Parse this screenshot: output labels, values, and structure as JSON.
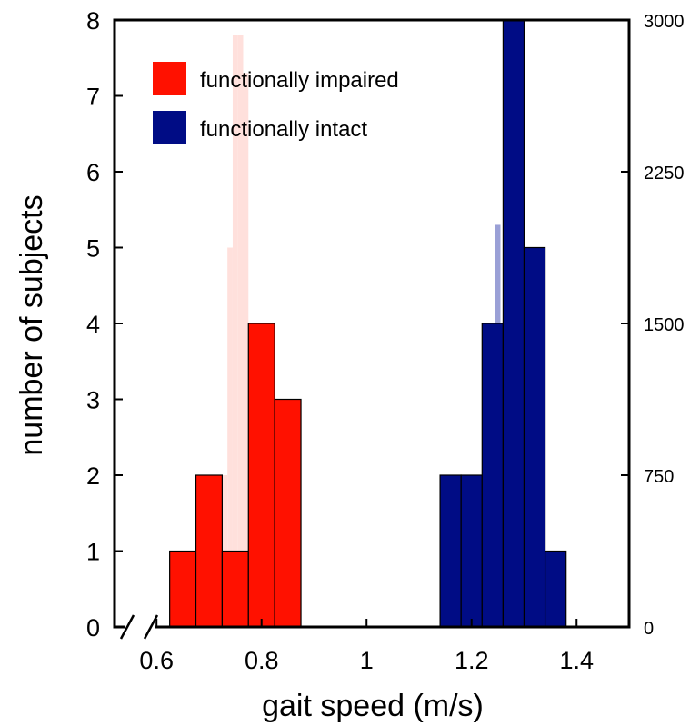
{
  "chart_data": {
    "type": "bar",
    "xlabel": "gait speed (m/s)",
    "ylabel": "number of subjects",
    "xlim": [
      0.52,
      1.5
    ],
    "ylim": [
      0,
      8
    ],
    "ylim_right": [
      0,
      3000
    ],
    "x_ticks": [
      0.6,
      0.8,
      1,
      1.2,
      1.4
    ],
    "y_ticks": [
      0,
      1,
      2,
      3,
      4,
      5,
      6,
      7,
      8
    ],
    "y_ticks_right": [
      0,
      750,
      1500,
      2250,
      3000
    ],
    "axis_break": "x",
    "bin_width": 0.05,
    "legend_position": "top-left",
    "series": [
      {
        "name": "functionally impaired",
        "color": "#ff1100",
        "bins": [
          {
            "x0": 0.625,
            "x1": 0.675,
            "count": 1
          },
          {
            "x0": 0.675,
            "x1": 0.725,
            "count": 2
          },
          {
            "x0": 0.725,
            "x1": 0.775,
            "count": 1
          },
          {
            "x0": 0.775,
            "x1": 0.825,
            "count": 4
          },
          {
            "x0": 0.825,
            "x1": 0.875,
            "count": 3
          }
        ]
      },
      {
        "name": "functionally intact",
        "color": "#000c85",
        "bins": [
          {
            "x0": 1.14,
            "x1": 1.18,
            "count": 2
          },
          {
            "x0": 1.18,
            "x1": 1.22,
            "count": 2
          },
          {
            "x0": 1.22,
            "x1": 1.26,
            "count": 4
          },
          {
            "x0": 1.26,
            "x1": 1.3,
            "count": 8
          },
          {
            "x0": 1.3,
            "x1": 1.34,
            "count": 5
          },
          {
            "x0": 1.34,
            "x1": 1.38,
            "count": 1
          }
        ]
      }
    ],
    "background_distributions": [
      {
        "color": "#ffe0dc",
        "bins": [
          {
            "x0": 0.725,
            "x1": 0.735,
            "value": 2
          },
          {
            "x0": 0.735,
            "x1": 0.745,
            "value": 5
          },
          {
            "x0": 0.745,
            "x1": 0.755,
            "value": 7.8
          },
          {
            "x0": 0.755,
            "x1": 0.765,
            "value": 7.8
          },
          {
            "x0": 0.765,
            "x1": 0.775,
            "value": 7.3
          }
        ]
      },
      {
        "color": "#9aa0d6",
        "bins": [
          {
            "x0": 1.245,
            "x1": 1.255,
            "value": 5.3
          }
        ]
      }
    ]
  }
}
